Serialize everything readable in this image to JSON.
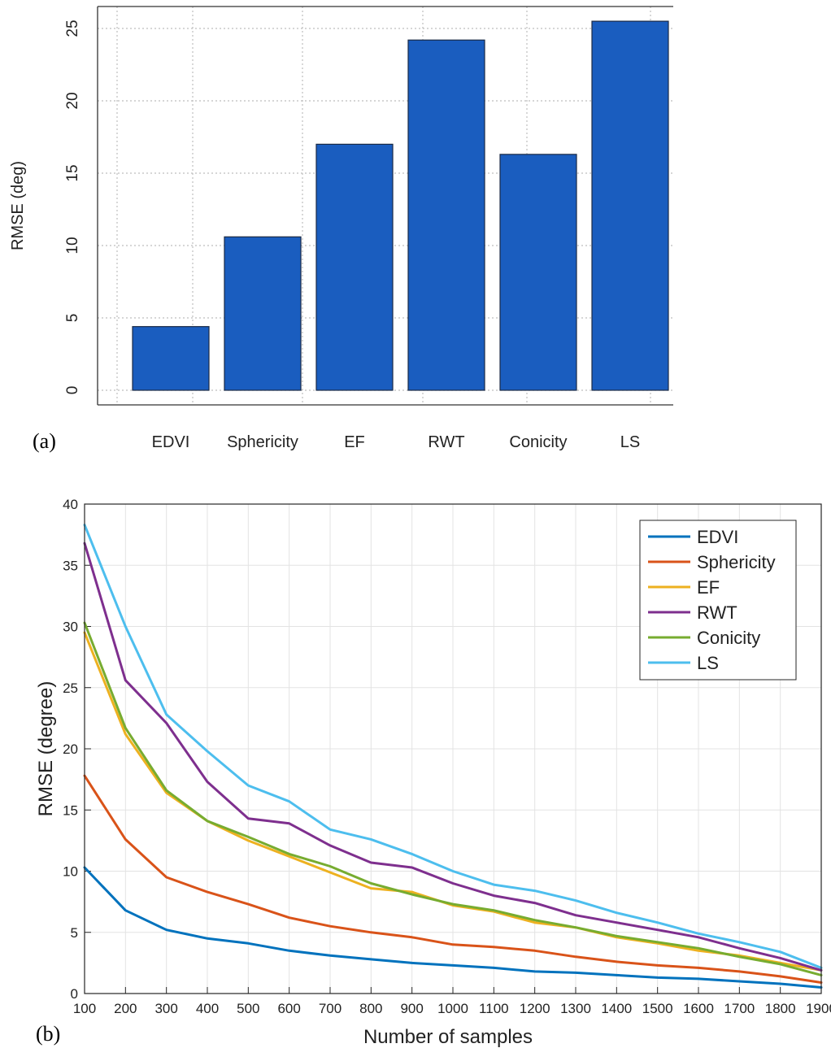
{
  "panel_labels": {
    "a": "(a)",
    "b": "(b)"
  },
  "chart_data": [
    {
      "type": "bar",
      "title": "",
      "xlabel": "",
      "ylabel": "RMSE (deg)",
      "categories": [
        "EDVI",
        "Sphericity",
        "EF",
        "RWT",
        "Conicity",
        "LS"
      ],
      "values": [
        4.4,
        10.6,
        17.0,
        24.2,
        16.3,
        25.5
      ],
      "ylim": [
        0,
        26
      ],
      "yticks": [
        0,
        5,
        10,
        15,
        20,
        25
      ],
      "grid": true,
      "bar_color": "#1a5dbf"
    },
    {
      "type": "line",
      "title": "",
      "xlabel": "Number of samples",
      "ylabel": "RMSE (degree)",
      "x": [
        100,
        200,
        300,
        400,
        500,
        600,
        700,
        800,
        900,
        1000,
        1100,
        1200,
        1300,
        1400,
        1500,
        1600,
        1700,
        1800,
        1900
      ],
      "xlim": [
        100,
        1900
      ],
      "ylim": [
        0,
        40
      ],
      "xticks": [
        100,
        200,
        300,
        400,
        500,
        600,
        700,
        800,
        900,
        1000,
        1100,
        1200,
        1300,
        1400,
        1500,
        1600,
        1700,
        1800,
        1900
      ],
      "yticks": [
        0,
        5,
        10,
        15,
        20,
        25,
        30,
        35,
        40
      ],
      "grid": true,
      "legend_position": "top-right",
      "series": [
        {
          "name": "EDVI",
          "color": "#0072bd",
          "values": [
            10.3,
            6.8,
            5.2,
            4.5,
            4.1,
            3.5,
            3.1,
            2.8,
            2.5,
            2.3,
            2.1,
            1.8,
            1.7,
            1.5,
            1.3,
            1.2,
            1.0,
            0.8,
            0.5
          ]
        },
        {
          "name": "Sphericity",
          "color": "#d95319",
          "values": [
            17.8,
            12.6,
            9.5,
            8.3,
            7.3,
            6.2,
            5.5,
            5.0,
            4.6,
            4.0,
            3.8,
            3.5,
            3.0,
            2.6,
            2.3,
            2.1,
            1.8,
            1.4,
            0.9
          ]
        },
        {
          "name": "EF",
          "color": "#edb120",
          "values": [
            29.5,
            21.2,
            16.4,
            14.1,
            12.5,
            11.2,
            9.9,
            8.6,
            8.3,
            7.2,
            6.7,
            5.8,
            5.4,
            4.6,
            4.1,
            3.5,
            3.1,
            2.5,
            1.9
          ]
        },
        {
          "name": "RWT",
          "color": "#7e2f8e",
          "values": [
            36.8,
            25.6,
            22.1,
            17.3,
            14.3,
            13.9,
            12.1,
            10.7,
            10.3,
            9.0,
            8.0,
            7.4,
            6.4,
            5.8,
            5.2,
            4.6,
            3.7,
            2.9,
            1.9
          ]
        },
        {
          "name": "Conicity",
          "color": "#77ac30",
          "values": [
            30.3,
            21.7,
            16.6,
            14.1,
            12.8,
            11.4,
            10.4,
            9.0,
            8.1,
            7.3,
            6.8,
            6.0,
            5.4,
            4.7,
            4.2,
            3.7,
            3.0,
            2.4,
            1.5
          ]
        },
        {
          "name": "LS",
          "color": "#4dbeee",
          "values": [
            38.3,
            30.0,
            22.8,
            19.8,
            17.0,
            15.7,
            13.4,
            12.6,
            11.4,
            10.0,
            8.9,
            8.4,
            7.6,
            6.6,
            5.8,
            4.9,
            4.2,
            3.4,
            2.1
          ]
        }
      ]
    }
  ]
}
